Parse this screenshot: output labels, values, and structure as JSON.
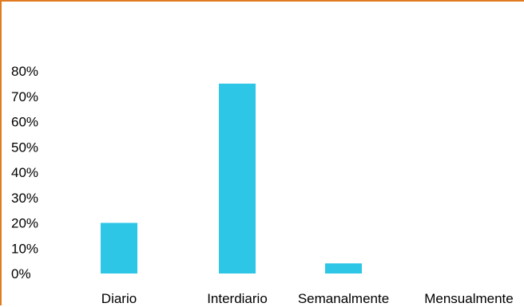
{
  "chart_data": {
    "type": "bar",
    "title": "",
    "xlabel": "",
    "ylabel": "",
    "categories": [
      "Diario",
      "Interdiario",
      "Semanalmente",
      "Mensualmente"
    ],
    "values": [
      20,
      75,
      4,
      0
    ],
    "ylim": [
      0,
      80
    ],
    "yticks": [
      0,
      10,
      20,
      30,
      40,
      50,
      60,
      70,
      80
    ],
    "ytick_labels": [
      "0%",
      "10%",
      "20%",
      "30%",
      "40%",
      "50%",
      "60%",
      "70%",
      "80%"
    ],
    "grid": false,
    "legend": "none",
    "bar_color": "#2ec6e6",
    "border_color": "#e07b20"
  }
}
